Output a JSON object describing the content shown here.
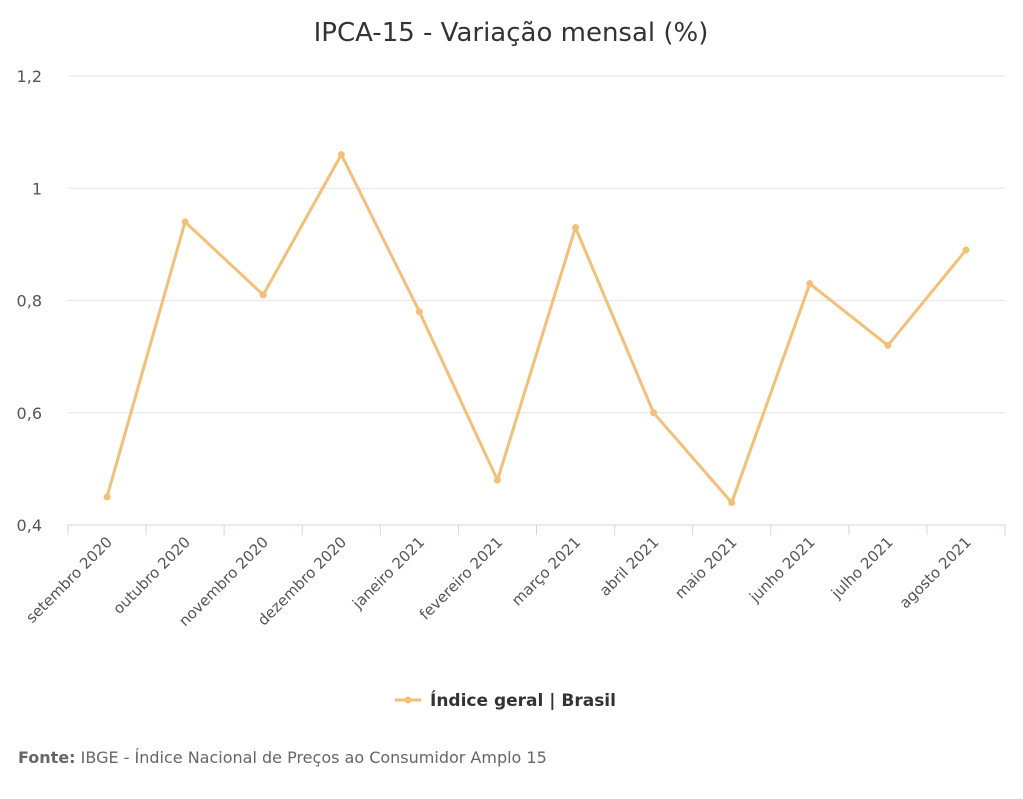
{
  "chart_data": {
    "type": "line",
    "title": "IPCA-15 - Variação mensal (%)",
    "categories": [
      "setembro 2020",
      "outubro 2020",
      "novembro 2020",
      "dezembro 2020",
      "janeiro 2021",
      "fevereiro 2021",
      "março 2021",
      "abril 2021",
      "maio 2021",
      "junho 2021",
      "julho 2021",
      "agosto 2021"
    ],
    "series": [
      {
        "name": "Índice geral | Brasil",
        "values": [
          0.45,
          0.94,
          0.81,
          1.06,
          0.78,
          0.48,
          0.93,
          0.6,
          0.44,
          0.83,
          0.72,
          0.89
        ],
        "color": "#f2c078"
      }
    ],
    "ylim": [
      0.4,
      1.2
    ],
    "yticks": [
      "0,4",
      "0,6",
      "0,8",
      "1",
      "1,2"
    ],
    "grid": true,
    "legend_position": "bottom"
  },
  "source": {
    "label": "Fonte:",
    "text": "IBGE - Índice Nacional de Preços ao Consumidor Amplo 15"
  }
}
